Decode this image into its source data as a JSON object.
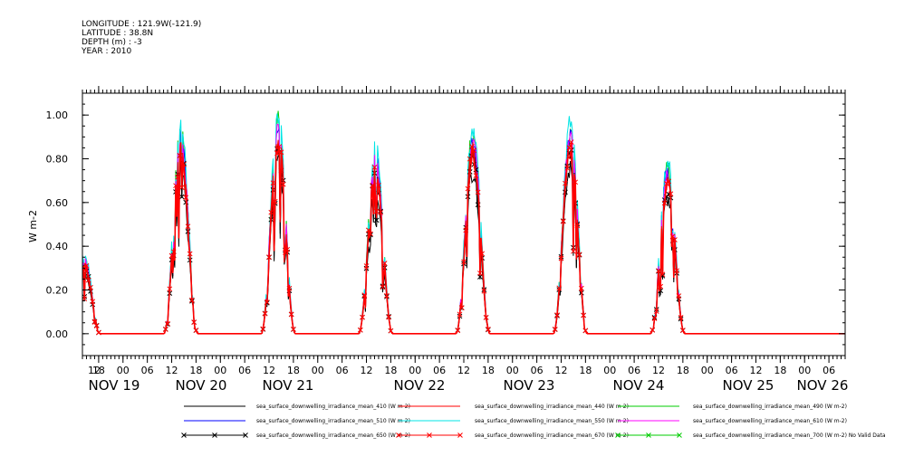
{
  "header": {
    "longitude": "LONGITUDE : 121.9W(-121.9)",
    "latitude": "LATITUDE : 38.8N",
    "depth": "DEPTH (m) : -3",
    "year": "YEAR : 2010"
  },
  "chart_data": {
    "type": "line",
    "title": "",
    "xlabel": "",
    "ylabel": "W m-2",
    "ylim": [
      -0.1,
      1.1
    ],
    "yticks": [
      0.0,
      0.2,
      0.4,
      0.6,
      0.8,
      1.0
    ],
    "ytick_labels": [
      "0.00",
      "0.20",
      "0.40",
      "0.60",
      "0.80",
      "1.00"
    ],
    "x_unit": "hours since Nov 19 00:00, 2010",
    "xlim": [
      -10,
      178
    ],
    "hour_ticks": [
      {
        "x": -12,
        "label": "12"
      },
      {
        "x": -6,
        "label": "18"
      },
      {
        "x": 0,
        "label": "00"
      },
      {
        "x": 6,
        "label": "06"
      },
      {
        "x": 12,
        "label": "12"
      },
      {
        "x": 18,
        "label": "18"
      },
      {
        "x": 24,
        "label": "00"
      },
      {
        "x": 30,
        "label": "06"
      },
      {
        "x": 36,
        "label": "12"
      },
      {
        "x": 42,
        "label": "18"
      },
      {
        "x": 48,
        "label": "00"
      },
      {
        "x": 54,
        "label": "06"
      },
      {
        "x": 60,
        "label": "12"
      },
      {
        "x": 66,
        "label": "18"
      },
      {
        "x": 72,
        "label": "00"
      },
      {
        "x": 78,
        "label": "06"
      },
      {
        "x": 84,
        "label": "12"
      },
      {
        "x": 90,
        "label": "18"
      },
      {
        "x": 96,
        "label": "00"
      },
      {
        "x": 102,
        "label": "06"
      },
      {
        "x": 108,
        "label": "12"
      },
      {
        "x": 114,
        "label": "18"
      },
      {
        "x": 120,
        "label": "00"
      },
      {
        "x": 126,
        "label": "06"
      },
      {
        "x": 132,
        "label": "12"
      },
      {
        "x": 138,
        "label": "18"
      },
      {
        "x": 144,
        "label": "00"
      },
      {
        "x": 150,
        "label": "06"
      },
      {
        "x": 156,
        "label": "12"
      },
      {
        "x": 162,
        "label": "18"
      },
      {
        "x": 168,
        "label": "00"
      },
      {
        "x": 174,
        "label": "06"
      }
    ],
    "day_labels": [
      {
        "x": -12,
        "label": "NOV 19"
      },
      {
        "x": 12,
        "label": "NOV 20"
      },
      {
        "x": 36,
        "label": "NOV 21"
      },
      {
        "x": 60,
        "label": "NOV 22"
      },
      {
        "x": 84,
        "label": "NOV 23"
      },
      {
        "x": 108,
        "label": "NOV 24"
      },
      {
        "x": 132,
        "label": "NOV 25"
      },
      {
        "x": 156,
        "label": "NOV 26"
      }
    ],
    "days": [
      {
        "start": -13.5,
        "end": -5.5,
        "peak": 0.3,
        "noon": -8.5
      },
      {
        "start": 10.0,
        "end": 18.5,
        "peak": 0.8,
        "noon": 13.5
      },
      {
        "start": 34.0,
        "end": 42.5,
        "peak": 0.85,
        "noon": 37.5
      },
      {
        "start": 58.0,
        "end": 66.5,
        "peak": 0.72,
        "noon": 61.5
      },
      {
        "start": 82.0,
        "end": 90.5,
        "peak": 0.8,
        "noon": 85.5
      },
      {
        "start": 106.0,
        "end": 114.5,
        "peak": 0.81,
        "noon": 110.0
      },
      {
        "start": 130.0,
        "end": 138.5,
        "peak": 0.66,
        "noon": 134.5
      }
    ],
    "series": [
      {
        "name": "sea_surface_downwelling_irradiance_mean_410 (W m-2)",
        "color": "#000000",
        "marker": "none",
        "scale": 0.9
      },
      {
        "name": "sea_surface_downwelling_irradiance_mean_440 (W m-2)",
        "color": "#ff0000",
        "marker": "none",
        "scale": 1.0
      },
      {
        "name": "sea_surface_downwelling_irradiance_mean_490 (W m-2)",
        "color": "#00cc00",
        "marker": "none",
        "scale": 1.1
      },
      {
        "name": "sea_surface_downwelling_irradiance_mean_510 (W m-2)",
        "color": "#0000ff",
        "marker": "none",
        "scale": 1.08
      },
      {
        "name": "sea_surface_downwelling_irradiance_mean_550 (W m-2)",
        "color": "#00e5e5",
        "marker": "none",
        "scale": 1.15
      },
      {
        "name": "sea_surface_downwelling_irradiance_mean_610 (W m-2)",
        "color": "#ff00ff",
        "marker": "none",
        "scale": 1.06
      },
      {
        "name": "sea_surface_downwelling_irradiance_mean_650 (W m-2)",
        "color": "#000000",
        "marker": "x",
        "scale": 0.97
      },
      {
        "name": "sea_surface_downwelling_irradiance_mean_670 (W m-2)",
        "color": "#ff0000",
        "marker": "x",
        "scale": 1.0
      },
      {
        "name": "sea_surface_downwelling_irradiance_mean_700 (W m-2) No Valid Data",
        "color": "#00cc00",
        "marker": "x",
        "scale": 0
      }
    ]
  }
}
